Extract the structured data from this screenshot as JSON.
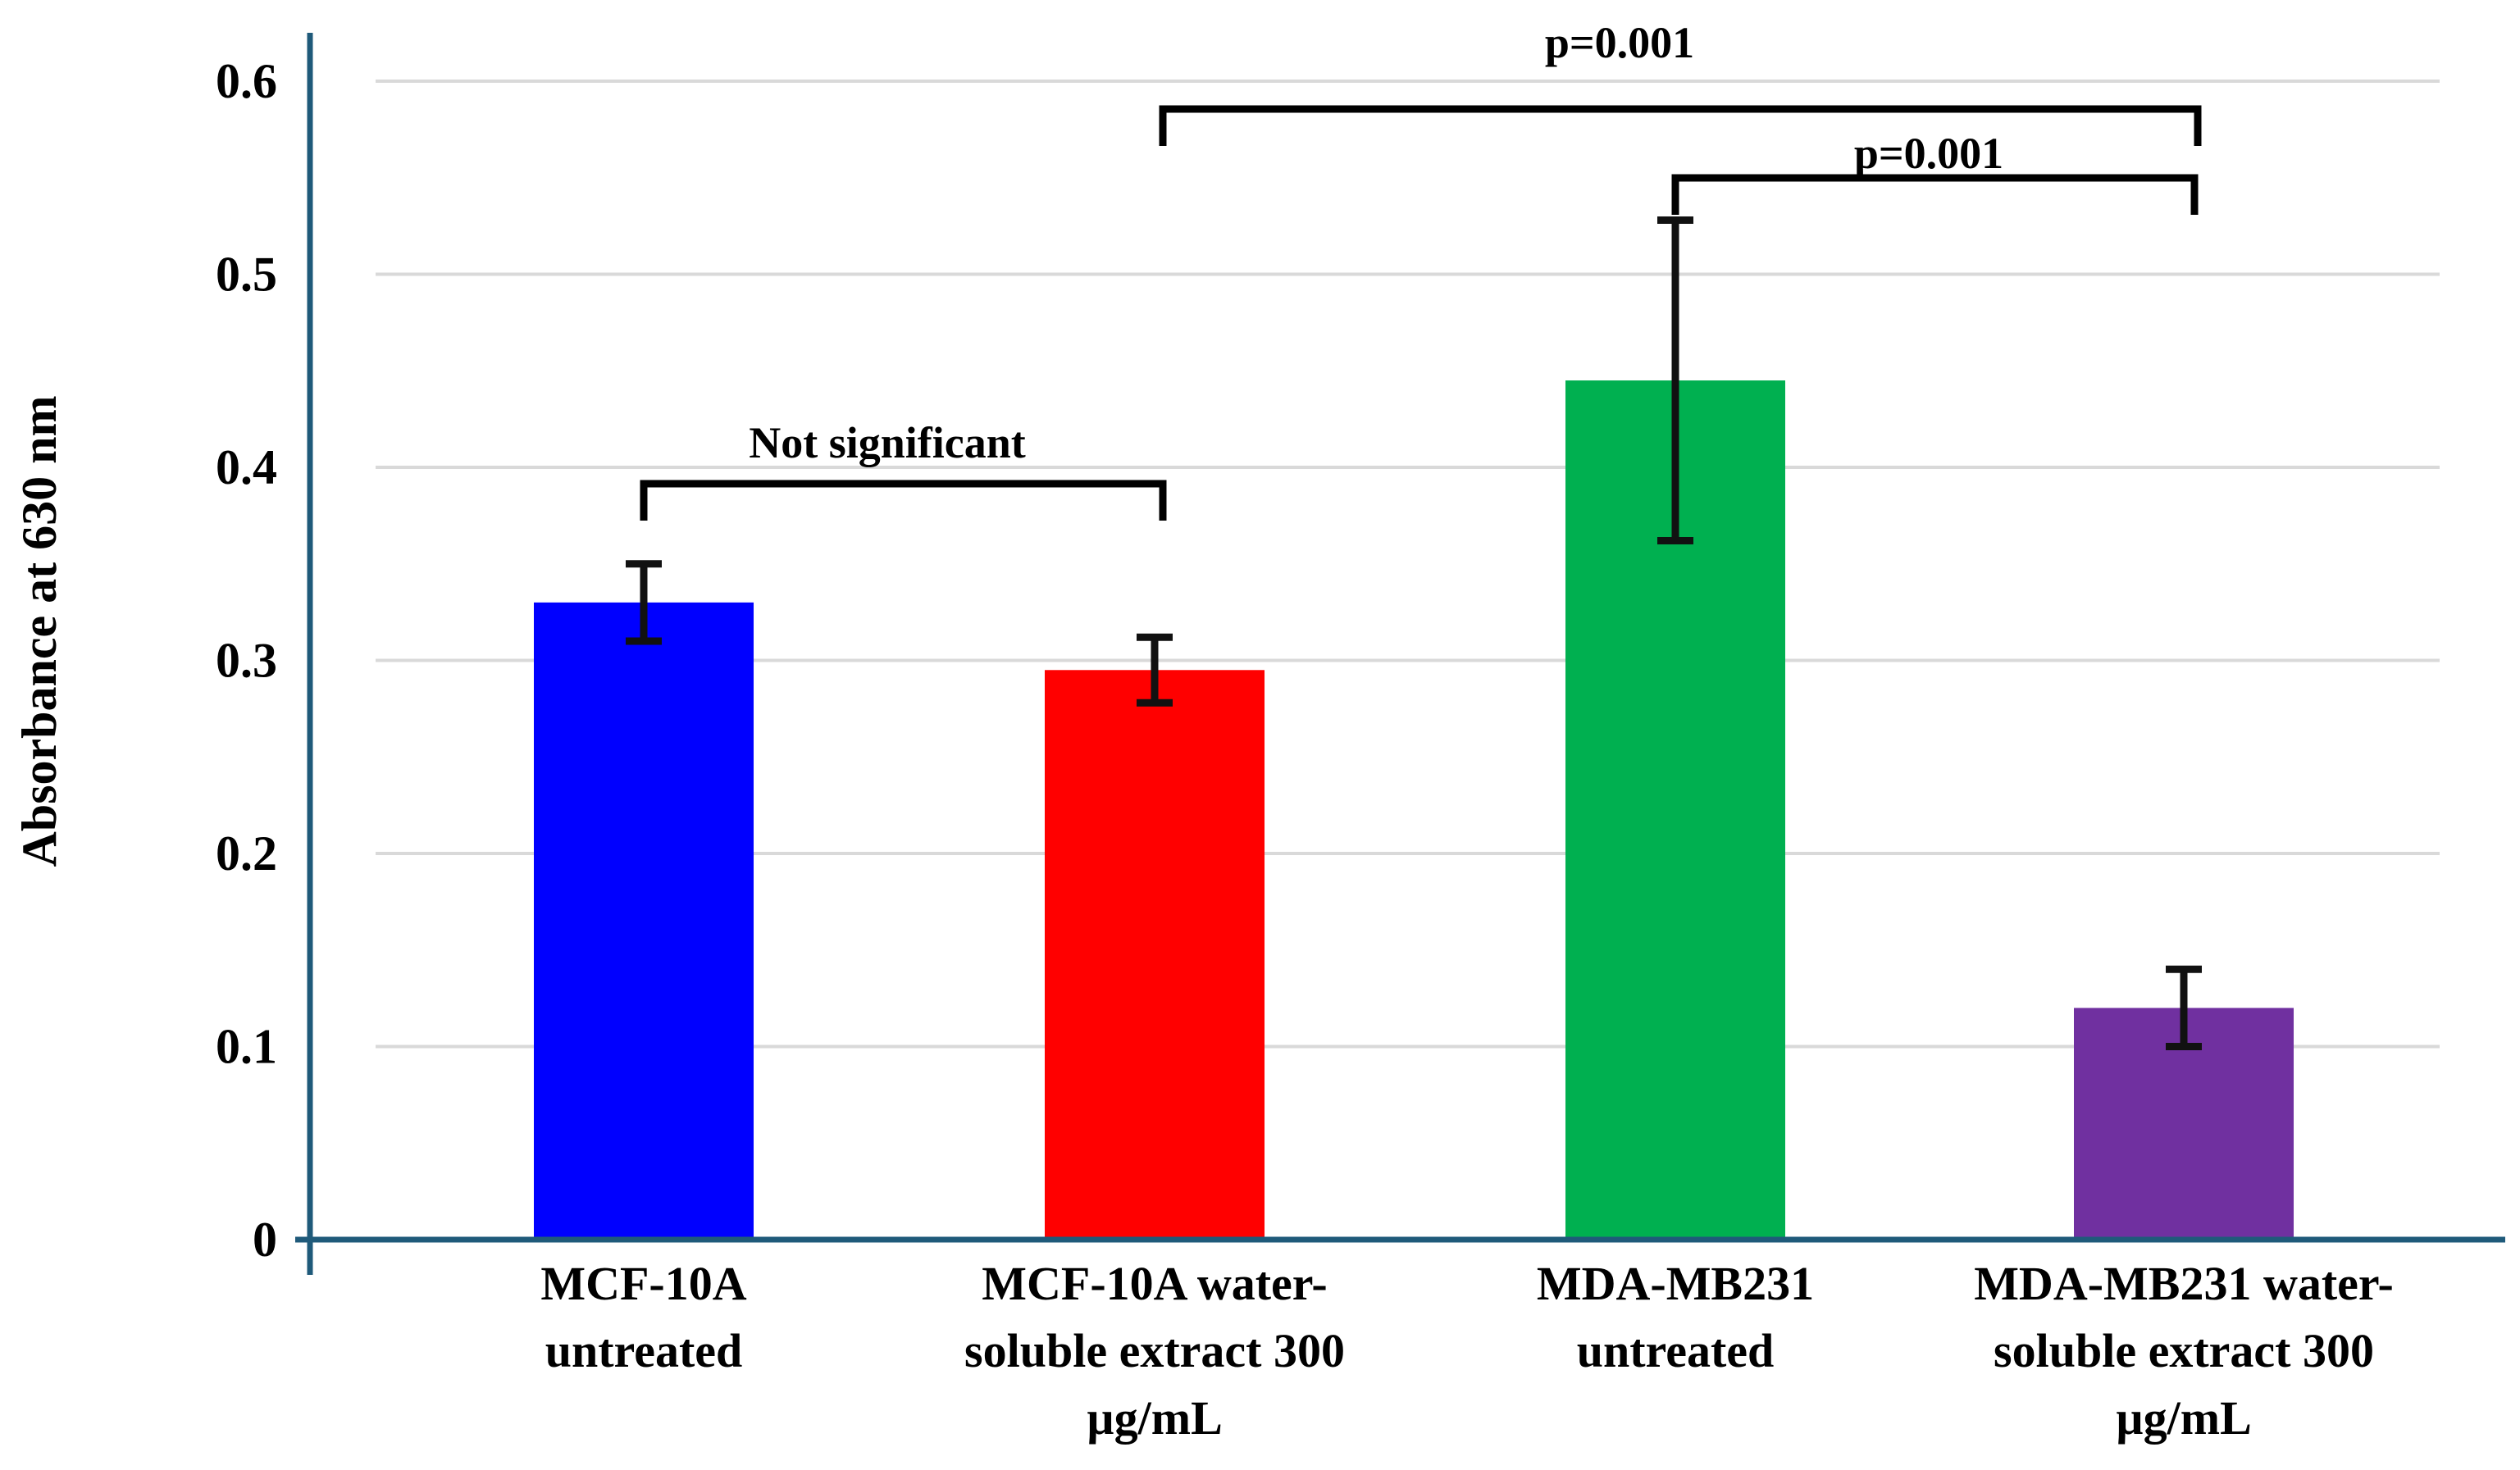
{
  "chart_data": {
    "type": "bar",
    "title": "",
    "xlabel": "",
    "ylabel": "Absorbance at 630 nm",
    "ylim": [
      0,
      0.6
    ],
    "yticks": [
      "0",
      "0.1",
      "0.2",
      "0.3",
      "0.4",
      "0.5",
      "0.6"
    ],
    "grid": true,
    "categories": [
      [
        "MCF-10A",
        "untreated"
      ],
      [
        "MCF-10A water-",
        "soluble extract  300",
        "µg/mL"
      ],
      [
        "MDA-MB231",
        "untreated"
      ],
      [
        "MDA-MB231 water-",
        "soluble extract  300",
        "µg/mL"
      ]
    ],
    "values": [
      0.33,
      0.295,
      0.445,
      0.12
    ],
    "errors": [
      0.02,
      0.017,
      0.083,
      0.02
    ],
    "colors": [
      "#0000FF",
      "#FF0000",
      "#00B050",
      "#7030A0"
    ],
    "annotations": [
      {
        "text": "Not significant",
        "from": 0,
        "to": 1
      },
      {
        "text": "p=0.001",
        "from": 2,
        "to": 3
      },
      {
        "text": "p=0.001",
        "from": 1,
        "to": 3
      }
    ]
  }
}
